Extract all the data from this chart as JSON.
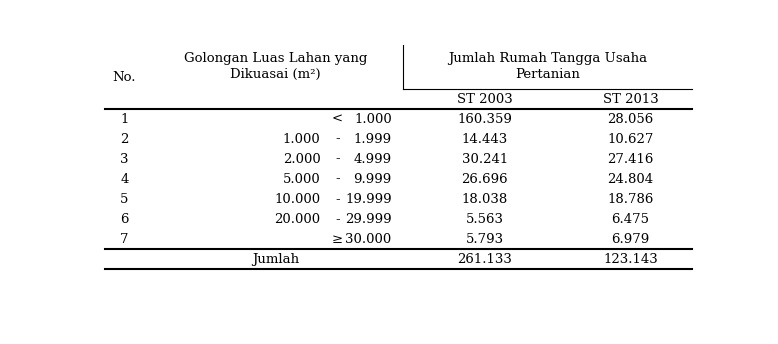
{
  "rows": [
    [
      "1",
      "",
      "<",
      "1.000",
      "160.359",
      "28.056"
    ],
    [
      "2",
      "1.000",
      "-",
      "1.999",
      "14.443",
      "10.627"
    ],
    [
      "3",
      "2.000",
      "-",
      "4.999",
      "30.241",
      "27.416"
    ],
    [
      "4",
      "5.000",
      "-",
      "9.999",
      "26.696",
      "24.804"
    ],
    [
      "5",
      "10.000",
      "-",
      "19.999",
      "18.038",
      "18.786"
    ],
    [
      "6",
      "20.000",
      "-",
      "29.999",
      "5.563",
      "6.475"
    ],
    [
      "7",
      "",
      "≥",
      "30.000",
      "5.793",
      "6.979"
    ]
  ],
  "footer": [
    "Jumlah",
    "261.133",
    "123.143"
  ],
  "bg_color": "#ffffff",
  "text_color": "#000000",
  "font_size": 9.5,
  "header1_golongan_line1": "Golongan Luas Lahan yang",
  "header1_golongan_line2": "Dikuasai (m²)",
  "header2_line1": "Jumlah Rumah Tangga Usaha",
  "header2_line2": "Pertanian",
  "subheader_st2003": "ST 2003",
  "subheader_st2013": "ST 2013",
  "no_label": "No."
}
